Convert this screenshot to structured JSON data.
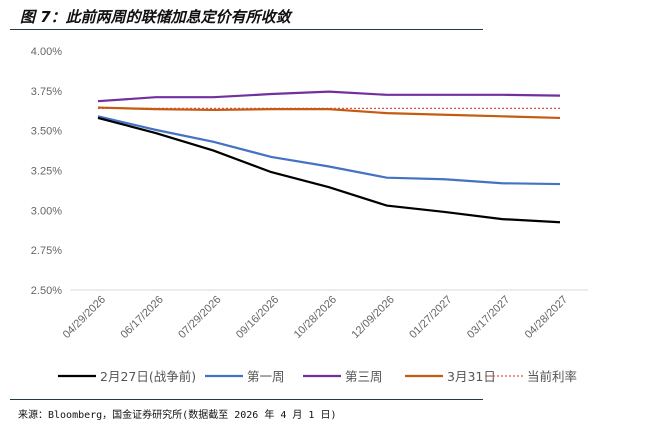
{
  "title": "图 7：此前两周的联储加息定价有所收敛",
  "source": "来源：Bloomberg，国金证券研究所(数据截至 2026 年 4 月 1 日)",
  "chart_data": {
    "type": "line",
    "categories": [
      "04/29/2026",
      "06/17/2026",
      "07/29/2026",
      "09/16/2026",
      "10/28/2026",
      "12/09/2026",
      "01/27/2027",
      "03/17/2027",
      "04/28/2027"
    ],
    "ylim": [
      2.5,
      4.0
    ],
    "yticks": [
      "2.50%",
      "2.75%",
      "3.00%",
      "3.25%",
      "3.50%",
      "3.75%",
      "4.00%"
    ],
    "grid": false,
    "legend": "bottom",
    "series": [
      {
        "name": "2月27日(战争前)",
        "color": "#000000",
        "style": "solid",
        "values": [
          3.58,
          3.485,
          3.375,
          3.24,
          3.145,
          3.03,
          2.99,
          2.945,
          2.925
        ]
      },
      {
        "name": "第一周",
        "color": "#4472c4",
        "style": "solid",
        "values": [
          3.59,
          3.505,
          3.43,
          3.335,
          3.275,
          3.205,
          3.195,
          3.17,
          3.165
        ]
      },
      {
        "name": "第三周",
        "color": "#7030a0",
        "style": "solid",
        "values": [
          3.685,
          3.71,
          3.71,
          3.73,
          3.745,
          3.725,
          3.725,
          3.725,
          3.72
        ]
      },
      {
        "name": "3月31日",
        "color": "#c55a11",
        "style": "solid",
        "values": [
          3.645,
          3.635,
          3.63,
          3.635,
          3.635,
          3.61,
          3.6,
          3.59,
          3.58
        ]
      },
      {
        "name": "当前利率",
        "color": "#e05050",
        "style": "dotted",
        "values": [
          3.64,
          3.64,
          3.64,
          3.64,
          3.64,
          3.64,
          3.64,
          3.64,
          3.64
        ]
      }
    ]
  }
}
